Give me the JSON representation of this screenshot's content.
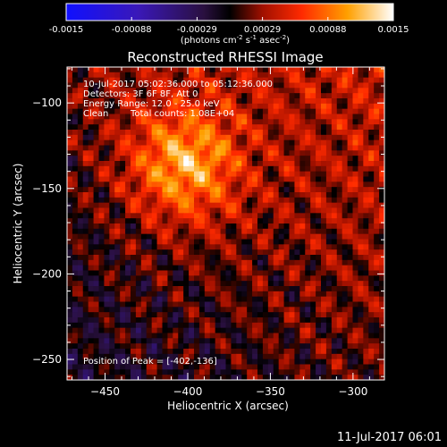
{
  "colorbar": {
    "ticks": [
      "-0.0015",
      "-0.00088",
      "-0.00029",
      "0.00029",
      "0.00088",
      "0.0015"
    ],
    "min": -0.0015,
    "max": 0.0015,
    "unit_prefix": "(photons cm",
    "unit_exp1": "-2",
    "unit_mid1": " s",
    "unit_exp2": "-1",
    "unit_mid2": " asec",
    "unit_exp3": "-2",
    "unit_suffix": ")"
  },
  "chart_data": {
    "type": "heatmap",
    "title": "Reconstructed RHESSI Image",
    "xlabel": "Heliocentric X (arcsec)",
    "ylabel": "Heliocentric Y (arcsec)",
    "xlim": [
      -473,
      -281
    ],
    "ylim": [
      -262,
      -79
    ],
    "x_ticks": [
      -450,
      -400,
      -350,
      -300
    ],
    "y_ticks": [
      -100,
      -150,
      -200,
      -250
    ],
    "colormap": "rhessi-bipolar (blue-purple-black-red-orange-yellow-white)",
    "annotations": [
      "10-Jul-2017 05:02:36.000 to 05:12:36.000",
      "Detectors: 3F 6F 8F, Att 0",
      "Energy Range: 12.0 - 25.0 keV",
      "Clean",
      "Total counts: 1.08E+04"
    ],
    "peak_label": "Position of Peak = [-402,-136]",
    "peak": [
      -402,
      -136
    ]
  },
  "footer": {
    "timestamp": "11-Jul-2017 06:01"
  }
}
